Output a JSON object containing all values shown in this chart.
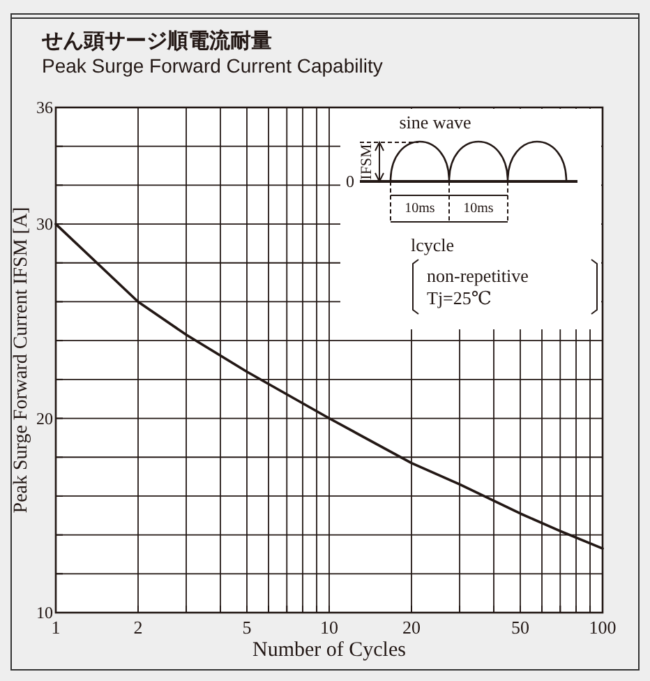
{
  "chart_data": {
    "type": "line",
    "title": "せん頭サージ順電流耐量",
    "subtitle": "Peak Surge Forward Current Capability",
    "xlabel": "Number of Cycles",
    "ylabel": "Peak Surge Forward Current IFSM [A]",
    "x": [
      1,
      2,
      3,
      5,
      10,
      20,
      30,
      50,
      70,
      100
    ],
    "series": [
      {
        "color": "#231815",
        "values": [
          30,
          26.0,
          24.3,
          22.4,
          20.0,
          17.7,
          16.6,
          15.1,
          14.2,
          13.3
        ]
      }
    ],
    "log": "x",
    "grid": true,
    "xlim": [
      1,
      100
    ],
    "xticks": [
      1,
      2,
      {
        "value": 3,
        "label": null
      },
      {
        "value": 4,
        "label": null
      },
      5,
      {
        "value": 6,
        "label": null
      },
      {
        "value": 7,
        "label": null
      },
      {
        "value": 8,
        "label": null
      },
      {
        "value": 9,
        "label": null
      },
      10,
      20,
      {
        "value": 30,
        "label": null
      },
      {
        "value": 40,
        "label": null
      },
      50,
      {
        "value": 60,
        "label": null
      },
      {
        "value": 70,
        "label": null
      },
      {
        "value": 80,
        "label": null
      },
      {
        "value": 90,
        "label": null
      },
      100
    ],
    "ylim": [
      10,
      36
    ],
    "yticks": [
      10,
      {
        "value": 12,
        "label": null
      },
      {
        "value": 14,
        "label": null
      },
      {
        "value": 16,
        "label": null
      },
      {
        "value": 18,
        "label": null
      },
      20,
      {
        "value": 22,
        "label": null
      },
      {
        "value": 24,
        "label": null
      },
      {
        "value": 26,
        "label": null
      },
      {
        "value": 28,
        "label": null
      },
      30,
      {
        "value": 32,
        "label": null
      },
      {
        "value": 34,
        "label": null
      },
      36
    ],
    "annotations": [
      "sine wave",
      "IFSM",
      "0",
      "10ms",
      "10ms",
      "lcycle",
      "non-repetitive",
      "Tj=25℃"
    ]
  }
}
